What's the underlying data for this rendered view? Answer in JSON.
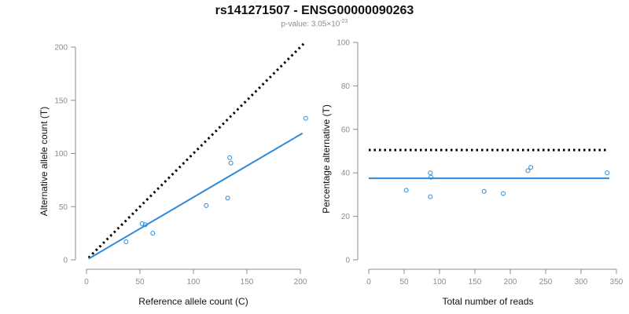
{
  "header": {
    "title": "rs141271507 - ENSG00000090263",
    "pvalue_prefix": "p-value: 3.05×10",
    "pvalue_exponent": "-23"
  },
  "colors": {
    "points": "#2b8ad9",
    "fit_line": "#2b8ad9",
    "reference_line": "#000000",
    "axis": "#8c8c8c"
  },
  "chart_data": [
    {
      "type": "scatter",
      "title": "",
      "xlabel": "Reference allele count (C)",
      "ylabel": "Alternative allele count (T)",
      "xlim": [
        0,
        200
      ],
      "ylim": [
        0,
        200
      ],
      "xticks": [
        0,
        50,
        100,
        150,
        200
      ],
      "yticks": [
        0,
        50,
        100,
        150,
        200
      ],
      "grid": false,
      "points": [
        {
          "x": 37,
          "y": 17
        },
        {
          "x": 52,
          "y": 34
        },
        {
          "x": 55,
          "y": 33
        },
        {
          "x": 62,
          "y": 25
        },
        {
          "x": 112,
          "y": 51
        },
        {
          "x": 132,
          "y": 58
        },
        {
          "x": 134,
          "y": 96
        },
        {
          "x": 135,
          "y": 91
        },
        {
          "x": 205,
          "y": 133
        }
      ],
      "fit_line": {
        "x": [
          2,
          202
        ],
        "y": [
          1,
          119
        ]
      },
      "reference_line": {
        "x": [
          2,
          204
        ],
        "y": [
          2,
          204
        ],
        "style": "dotted"
      }
    },
    {
      "type": "scatter",
      "title": "",
      "xlabel": "Total number of reads",
      "ylabel": "Percentage alternative (T)",
      "xlim": [
        0,
        350
      ],
      "ylim": [
        0,
        100
      ],
      "xticks": [
        0,
        50,
        100,
        150,
        200,
        250,
        300,
        350
      ],
      "yticks": [
        0,
        20,
        40,
        60,
        80,
        100
      ],
      "grid": false,
      "points": [
        {
          "x": 53,
          "y": 32
        },
        {
          "x": 87,
          "y": 40
        },
        {
          "x": 88,
          "y": 38
        },
        {
          "x": 87,
          "y": 29
        },
        {
          "x": 163,
          "y": 31.5
        },
        {
          "x": 190,
          "y": 30.5
        },
        {
          "x": 225,
          "y": 41
        },
        {
          "x": 229,
          "y": 42.5
        },
        {
          "x": 337,
          "y": 40
        }
      ],
      "fit_line": {
        "x": [
          0,
          340
        ],
        "y": [
          37.5,
          37.5
        ]
      },
      "reference_line": {
        "x": [
          0,
          335
        ],
        "y": [
          50.5,
          50.5
        ],
        "style": "dotted"
      }
    }
  ]
}
